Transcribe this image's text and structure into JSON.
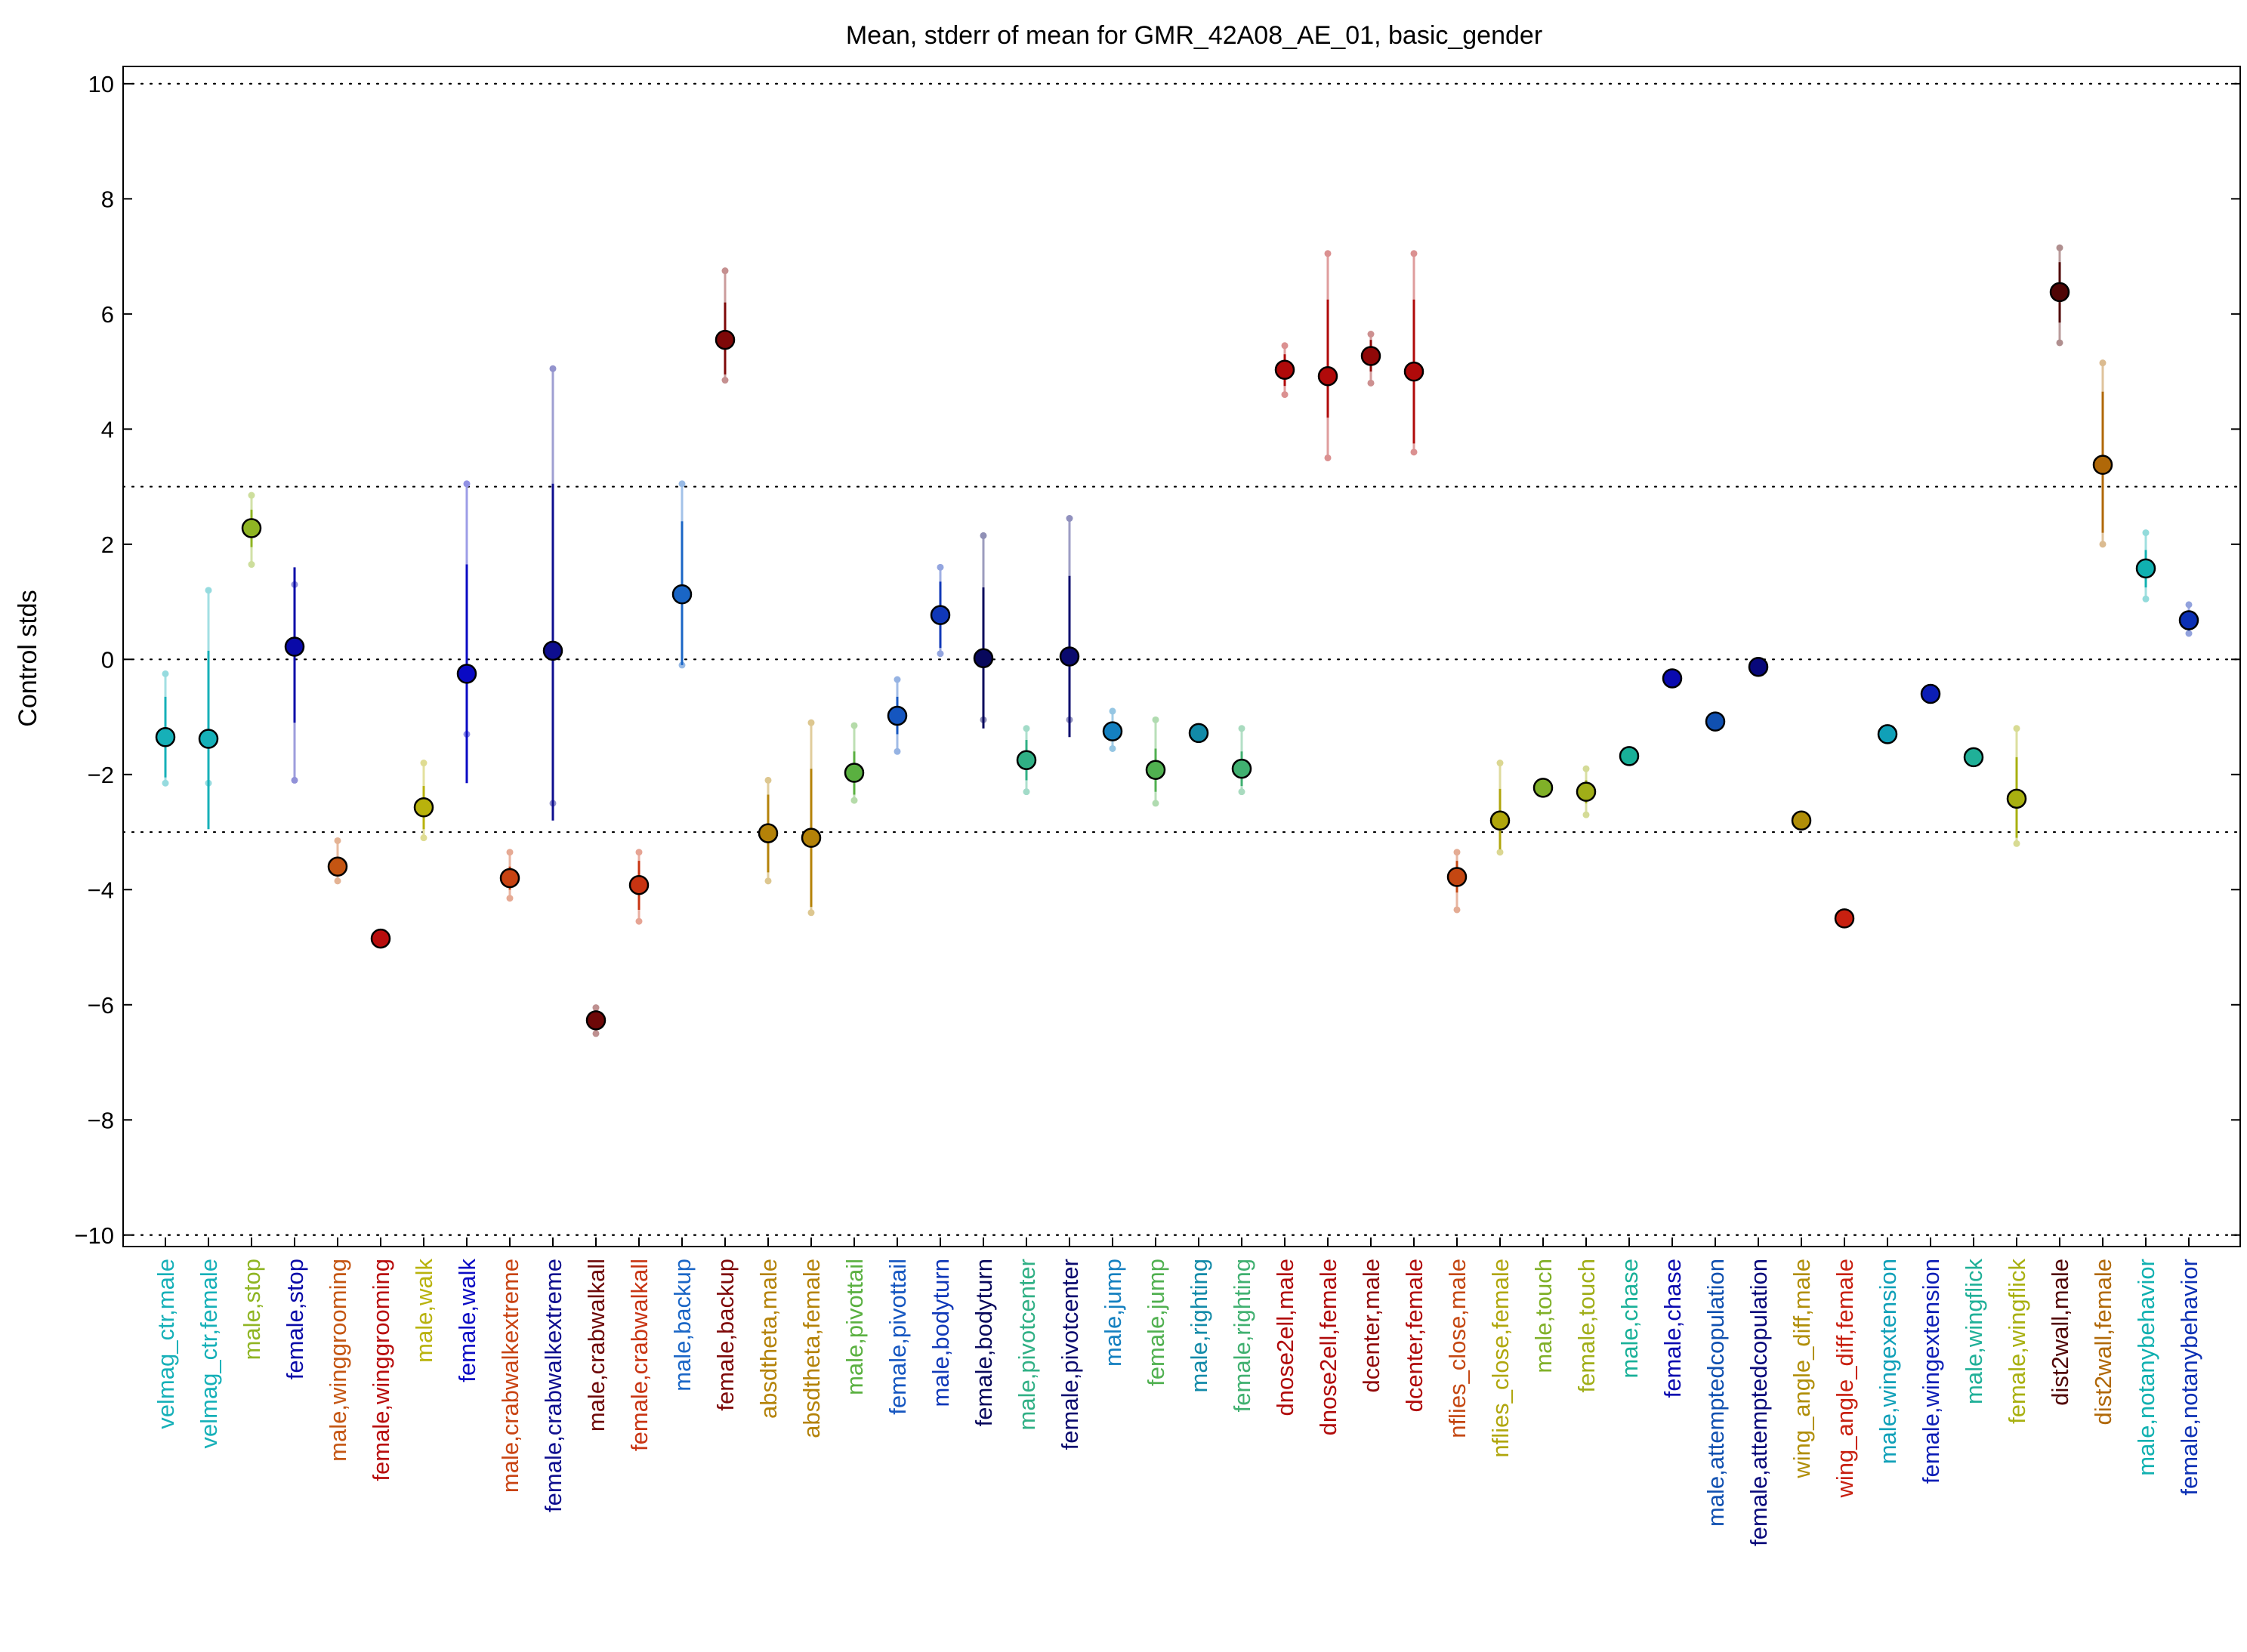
{
  "chart_data": {
    "type": "scatter",
    "title": "Mean, stderr of mean for GMR_42A08_AE_01, basic_gender",
    "xlabel": "",
    "ylabel": "Control stds",
    "ylim": [
      -10.2,
      10.3
    ],
    "yticks": [
      -10,
      -8,
      -6,
      -4,
      -2,
      0,
      2,
      4,
      6,
      8,
      10
    ],
    "ytick_labels": [
      "−10",
      "−8",
      "−6",
      "−4",
      "−2",
      "0",
      "2",
      "4",
      "6",
      "8",
      "10"
    ],
    "reference_lines": [
      10,
      3,
      0,
      -3,
      -10
    ],
    "grid": false,
    "legend": "none",
    "categories": [
      "velmag_ctr,male",
      "velmag_ctr,female",
      "male,stop",
      "female,stop",
      "male,winggrooming",
      "female,winggrooming",
      "male,walk",
      "female,walk",
      "male,crabwalkextreme",
      "female,crabwalkextreme",
      "male,crabwalkall",
      "female,crabwalkall",
      "male,backup",
      "female,backup",
      "absdtheta,male",
      "absdtheta,female",
      "male,pivottail",
      "female,pivottail",
      "male,bodyturn",
      "female,bodyturn",
      "male,pivotcenter",
      "female,pivotcenter",
      "male,jump",
      "female,jump",
      "male,righting",
      "female,righting",
      "dnose2ell,male",
      "dnose2ell,female",
      "dcenter,male",
      "dcenter,female",
      "nflies_close,male",
      "nflies_close,female",
      "male,touch",
      "female,touch",
      "male,chase",
      "female,chase",
      "male,attemptedcopulation",
      "female,attemptedcopulation",
      "wing_angle_diff,male",
      "wing_angle_diff,female",
      "male,wingextension",
      "female,wingextension",
      "male,wingflick",
      "female,wingflick",
      "dist2wall,male",
      "dist2wall,female",
      "male,notanybehavior",
      "female,notanybehavior"
    ],
    "series": [
      {
        "values": [
          -1.35,
          -1.38,
          2.28,
          0.22,
          -3.6,
          -4.85,
          -2.57,
          -0.25,
          -3.8,
          0.15,
          -6.27,
          -3.92,
          1.13,
          5.55,
          -3.02,
          -3.1,
          -1.97,
          -0.98,
          0.77,
          0.02,
          -1.75,
          0.05,
          -1.25,
          -1.92,
          -1.28,
          -1.9,
          5.03,
          4.92,
          5.27,
          5.0,
          -3.78,
          -2.8,
          -2.23,
          -2.3,
          -1.68,
          -0.33,
          -1.08,
          -0.13,
          -2.8,
          -4.5,
          -1.3,
          -0.6,
          -1.7,
          -2.42,
          6.38,
          3.38,
          1.58,
          0.68
        ],
        "stderr_low": [
          -2.05,
          -2.95,
          1.95,
          -1.1,
          -3.75,
          -4.85,
          -2.95,
          -2.15,
          -4.0,
          -2.8,
          -6.35,
          -4.35,
          -0.1,
          4.95,
          -3.7,
          -4.3,
          -2.35,
          -1.3,
          0.2,
          -1.2,
          -2.1,
          -1.35,
          -1.4,
          -2.3,
          -1.28,
          -2.2,
          4.75,
          4.2,
          5.0,
          3.75,
          -4.05,
          -3.3,
          -2.23,
          -2.5,
          -1.68,
          -0.33,
          -1.08,
          -0.13,
          -2.8,
          -4.5,
          -1.3,
          -0.6,
          -1.7,
          -3.1,
          5.85,
          2.2,
          1.25,
          0.5
        ],
        "stderr_high": [
          -0.65,
          0.15,
          2.6,
          1.6,
          -3.45,
          -4.85,
          -2.2,
          1.65,
          -3.6,
          3.05,
          -6.2,
          -3.5,
          2.4,
          6.2,
          -2.35,
          -1.9,
          -1.6,
          -0.65,
          1.35,
          1.25,
          -1.4,
          1.45,
          -1.1,
          -1.55,
          -1.28,
          -1.6,
          5.3,
          6.25,
          5.55,
          6.25,
          -3.5,
          -2.25,
          -2.23,
          -2.1,
          -1.68,
          -0.33,
          -1.08,
          -0.13,
          -2.8,
          -4.5,
          -1.3,
          -0.6,
          -1.7,
          -1.7,
          6.9,
          4.65,
          1.9,
          0.85
        ],
        "range_low": [
          -2.15,
          -2.15,
          1.65,
          -2.1,
          -3.85,
          -4.85,
          -3.1,
          -1.3,
          -4.15,
          -2.5,
          -6.5,
          -4.55,
          -0.1,
          4.85,
          -3.85,
          -4.4,
          -2.45,
          -1.6,
          0.1,
          -1.05,
          -2.3,
          -1.05,
          -1.55,
          -2.5,
          -1.28,
          -2.3,
          4.6,
          3.5,
          4.8,
          3.6,
          -4.35,
          -3.35,
          -2.23,
          -2.7,
          -1.68,
          -0.33,
          -1.08,
          -0.13,
          -2.8,
          -4.5,
          -1.3,
          -0.6,
          -1.7,
          -3.2,
          5.5,
          2.0,
          1.05,
          0.45
        ],
        "range_high": [
          -0.25,
          1.2,
          2.85,
          1.3,
          -3.15,
          -4.85,
          -1.8,
          3.05,
          -3.35,
          5.05,
          -6.05,
          -3.35,
          3.05,
          6.75,
          -2.1,
          -1.1,
          -1.15,
          -0.35,
          1.6,
          2.15,
          -1.2,
          2.45,
          -0.9,
          -1.05,
          -1.28,
          -1.2,
          5.45,
          7.05,
          5.65,
          7.05,
          -3.35,
          -1.8,
          -2.23,
          -1.9,
          -1.68,
          -0.33,
          -1.08,
          -0.13,
          -2.8,
          -4.5,
          -1.3,
          -0.6,
          -1.7,
          -1.2,
          7.15,
          5.15,
          2.2,
          0.95
        ]
      }
    ],
    "colors": [
      "#16b0b8",
      "#16b0b8",
      "#8fb523",
      "#0a0aa8",
      "#c45512",
      "#b80d0d",
      "#b8b20c",
      "#0a0ac4",
      "#c84312",
      "#0e0e8f",
      "#6e0808",
      "#c83412",
      "#1a66c6",
      "#7e0808",
      "#b48208",
      "#b48208",
      "#5ab040",
      "#1556c0",
      "#1038b8",
      "#08085c",
      "#30b085",
      "#0a0a6e",
      "#1480c0",
      "#50b050",
      "#128aa8",
      "#40b070",
      "#b00a0a",
      "#b00a0a",
      "#900808",
      "#b00a0a",
      "#c44712",
      "#b0a60c",
      "#80b028",
      "#a0ae18",
      "#18b098",
      "#0a0ab0",
      "#1050b0",
      "#08087a",
      "#b08e08",
      "#c82010",
      "#10a0b8",
      "#0c1eb6",
      "#20b098",
      "#a8b010",
      "#500505",
      "#b06808",
      "#10b0b0",
      "#0c30b4"
    ]
  }
}
